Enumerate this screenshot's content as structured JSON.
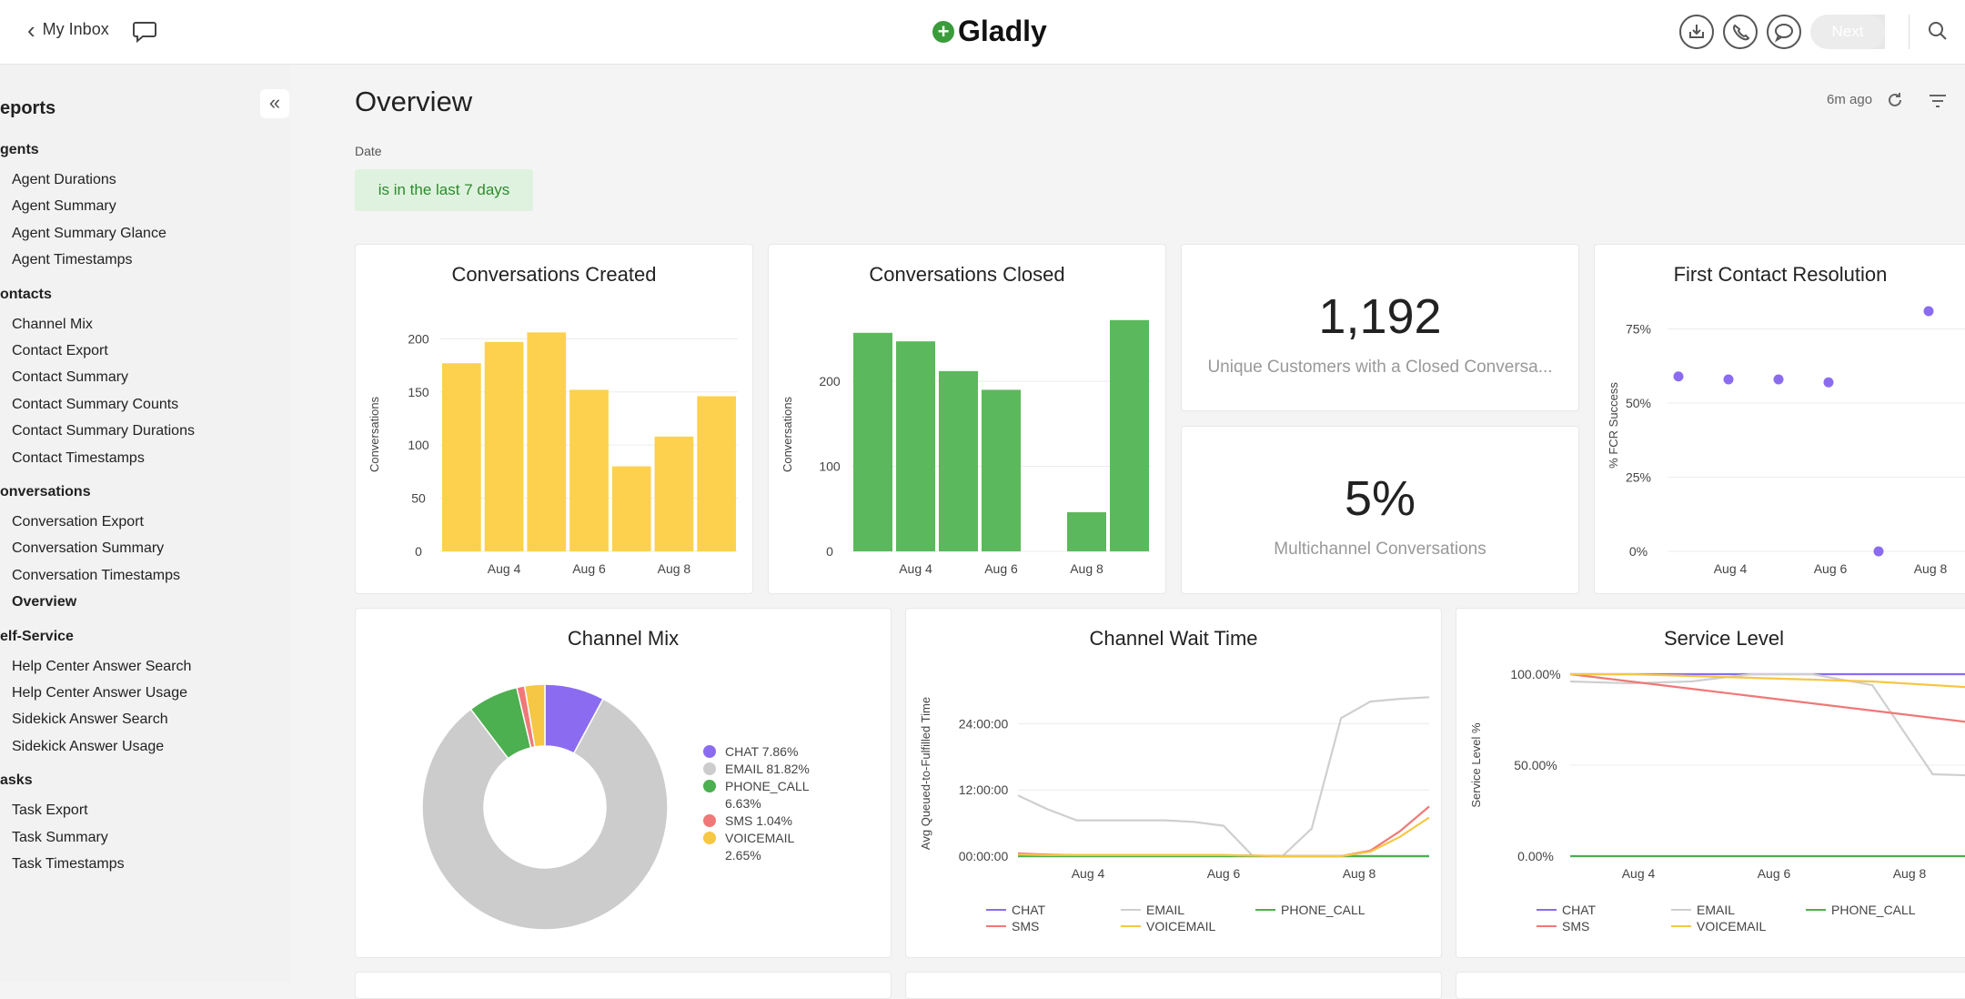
{
  "topbar": {
    "back_label": "My Inbox",
    "logo_text": "Gladly",
    "logo_plus": "+",
    "next_label": "Next",
    "icons": [
      "download-icon",
      "phone-icon",
      "chat-icon",
      "search-icon"
    ]
  },
  "sidebar": {
    "title": "eports",
    "collapse_glyph": "«",
    "groups": [
      {
        "label": "gents",
        "items": [
          "Agent Durations",
          "Agent Summary",
          "Agent Summary Glance",
          "Agent Timestamps"
        ]
      },
      {
        "label": "ontacts",
        "items": [
          "Channel Mix",
          "Contact Export",
          "Contact Summary",
          "Contact Summary Counts",
          "Contact Summary Durations",
          "Contact Timestamps"
        ]
      },
      {
        "label": "onversations",
        "items": [
          "Conversation Export",
          "Conversation Summary",
          "Conversation Timestamps",
          "Overview"
        ]
      },
      {
        "label": "elf-Service",
        "items": [
          "Help Center Answer Search",
          "Help Center Answer Usage",
          "Sidekick Answer Search",
          "Sidekick Answer Usage"
        ]
      },
      {
        "label": "asks",
        "items": [
          "Task Export",
          "Task Summary",
          "Task Timestamps"
        ]
      }
    ],
    "active_item": "Overview"
  },
  "main": {
    "title": "Overview",
    "updated": "6m ago",
    "date_label": "Date",
    "date_filter": "is in the last 7 days"
  },
  "kpis": {
    "unique_customers": {
      "value": "1,192",
      "label": "Unique Customers with a Closed Conversa..."
    },
    "multichannel": {
      "value": "5%",
      "label": "Multichannel Conversations"
    }
  },
  "colors": {
    "yellow": "#fdd14d",
    "green": "#5cb85c",
    "purple": "#8b6cf0",
    "gray": "#cccccc",
    "red": "#f07878",
    "orange": "#f6c744",
    "darkgreen": "#4caf50"
  },
  "chart_data": [
    {
      "type": "bar",
      "title": "Conversations Created",
      "ylabel": "Conversations",
      "xlabel": "",
      "x_ticks": [
        "Aug 4",
        "Aug 6",
        "Aug 8"
      ],
      "y_ticks": [
        "0",
        "50",
        "100",
        "150",
        "200"
      ],
      "ylim": [
        0,
        220
      ],
      "values": [
        177,
        197,
        206,
        152,
        80,
        108,
        146
      ]
    },
    {
      "type": "bar",
      "title": "Conversations Closed",
      "ylabel": "Conversations",
      "xlabel": "",
      "x_ticks": [
        "Aug 4",
        "Aug 6",
        "Aug 8"
      ],
      "y_ticks": [
        "0",
        "100",
        "200"
      ],
      "ylim": [
        0,
        275
      ],
      "values": [
        257,
        247,
        212,
        190,
        0,
        46,
        272
      ]
    },
    {
      "type": "scatter",
      "title": "First Contact Resolution",
      "ylabel": "% FCR Success",
      "xlabel": "",
      "x_ticks": [
        "Aug 4",
        "Aug 6",
        "Aug 8"
      ],
      "y_ticks": [
        "0%",
        "25%",
        "50%",
        "75%"
      ],
      "ylim": [
        0,
        85
      ],
      "values": [
        59,
        58,
        58,
        57,
        0,
        81
      ]
    },
    {
      "type": "pie",
      "title": "Channel Mix",
      "slices": [
        {
          "name": "CHAT",
          "label": "CHAT 7.86%",
          "value": 7.86
        },
        {
          "name": "EMAIL",
          "label": "EMAIL 81.82%",
          "value": 81.82
        },
        {
          "name": "PHONE_CALL",
          "label": "PHONE_CALL 6.63%",
          "value": 6.63
        },
        {
          "name": "SMS",
          "label": "SMS 1.04%",
          "value": 1.04
        },
        {
          "name": "VOICEMAIL",
          "label": "VOICEMAIL 2.65%",
          "value": 2.65
        }
      ],
      "legend_position": "right"
    },
    {
      "type": "line",
      "title": "Channel Wait Time",
      "ylabel": "Avg Queued-to-Fulfilled Time",
      "xlabel": "",
      "x_ticks": [
        "Aug 4",
        "Aug 6",
        "Aug 8"
      ],
      "y_ticks": [
        "00:00:00",
        "12:00:00",
        "24:00:00"
      ],
      "ylim_hours": [
        0,
        30
      ],
      "legend": [
        "CHAT",
        "EMAIL",
        "PHONE_CALL",
        "SMS",
        "VOICEMAIL"
      ],
      "series": [
        {
          "name": "CHAT",
          "values": [
            0,
            0,
            0,
            0,
            0,
            0,
            0,
            0,
            0,
            0,
            0,
            0,
            0,
            0,
            0
          ]
        },
        {
          "name": "EMAIL",
          "values": [
            11,
            8.5,
            6.5,
            6.5,
            6.5,
            6.5,
            6.2,
            5.5,
            0,
            0,
            5,
            25,
            28,
            28.5,
            28.8
          ]
        },
        {
          "name": "PHONE_CALL",
          "values": [
            0,
            0,
            0,
            0,
            0,
            0,
            0,
            0,
            0,
            0,
            0,
            0,
            0,
            0,
            0
          ]
        },
        {
          "name": "SMS",
          "values": [
            0.5,
            0.3,
            0.2,
            0.2,
            0.2,
            0.2,
            0.2,
            0.2,
            0.1,
            0,
            0,
            0,
            1,
            4.5,
            9
          ]
        },
        {
          "name": "VOICEMAIL",
          "values": [
            0.3,
            0.2,
            0.2,
            0.2,
            0.2,
            0.2,
            0.2,
            0.2,
            0.1,
            0,
            0,
            0,
            0.8,
            3.5,
            7
          ]
        }
      ]
    },
    {
      "type": "line",
      "title": "Service Level",
      "ylabel": "Service Level %",
      "xlabel": "",
      "x_ticks": [
        "Aug 4",
        "Aug 6",
        "Aug 8"
      ],
      "y_ticks": [
        "0.00%",
        "50.00%",
        "100.00%"
      ],
      "ylim": [
        0,
        100
      ],
      "legend": [
        "CHAT",
        "EMAIL",
        "PHONE_CALL",
        "SMS",
        "VOICEMAIL"
      ],
      "series": [
        {
          "name": "CHAT",
          "values": [
            100,
            100,
            100,
            100,
            100,
            100,
            100,
            100
          ]
        },
        {
          "name": "EMAIL",
          "values": [
            96,
            95,
            96,
            100,
            100,
            94,
            45,
            44
          ]
        },
        {
          "name": "PHONE_CALL",
          "values": [
            0,
            0,
            0,
            0,
            0,
            0,
            0,
            0
          ]
        },
        {
          "name": "SMS",
          "values": [
            100,
            96,
            92,
            88,
            84,
            80,
            76,
            72
          ]
        },
        {
          "name": "VOICEMAIL",
          "values": [
            100,
            100,
            99,
            98,
            97,
            96,
            94,
            92
          ]
        }
      ]
    }
  ]
}
